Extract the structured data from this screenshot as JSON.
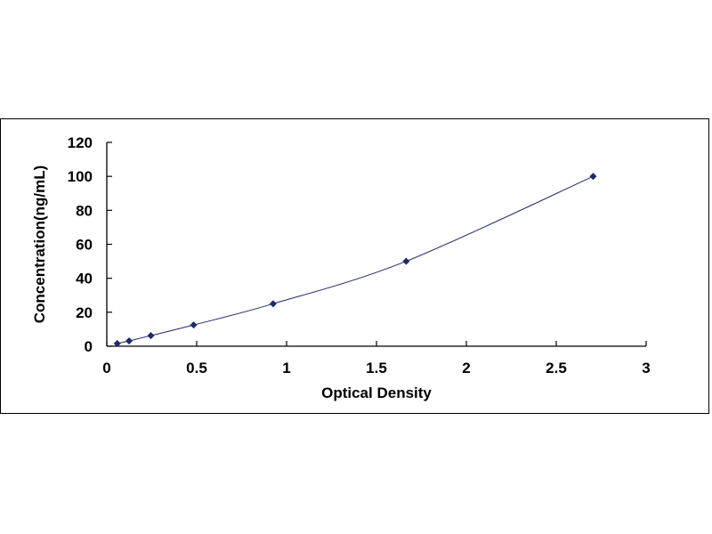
{
  "chart_data": {
    "type": "scatter",
    "title": "",
    "xlabel": "Optical Density",
    "ylabel": "Concentration(ng/mL)",
    "xlim": [
      0,
      3
    ],
    "ylim": [
      0,
      120
    ],
    "x_ticks": [
      0,
      0.5,
      1,
      1.5,
      2,
      2.5,
      3
    ],
    "x_tick_labels": [
      "0",
      "0.5",
      "1",
      "1.5",
      "2",
      "2.5",
      "3"
    ],
    "y_ticks": [
      0,
      20,
      40,
      60,
      80,
      100,
      120
    ],
    "y_tick_labels": [
      "0",
      "20",
      "40",
      "60",
      "80",
      "100",
      "120"
    ],
    "grid": false,
    "legend": "none",
    "marker_color": "#1f2a6b",
    "line_color": "#1f2a6b",
    "series": [
      {
        "x": [
          0.058,
          0.124,
          0.245,
          0.483,
          0.925,
          1.665,
          2.705
        ],
        "y": [
          1.56,
          3.12,
          6.25,
          12.5,
          25,
          50,
          100
        ],
        "fit": "smooth-curve"
      }
    ]
  }
}
